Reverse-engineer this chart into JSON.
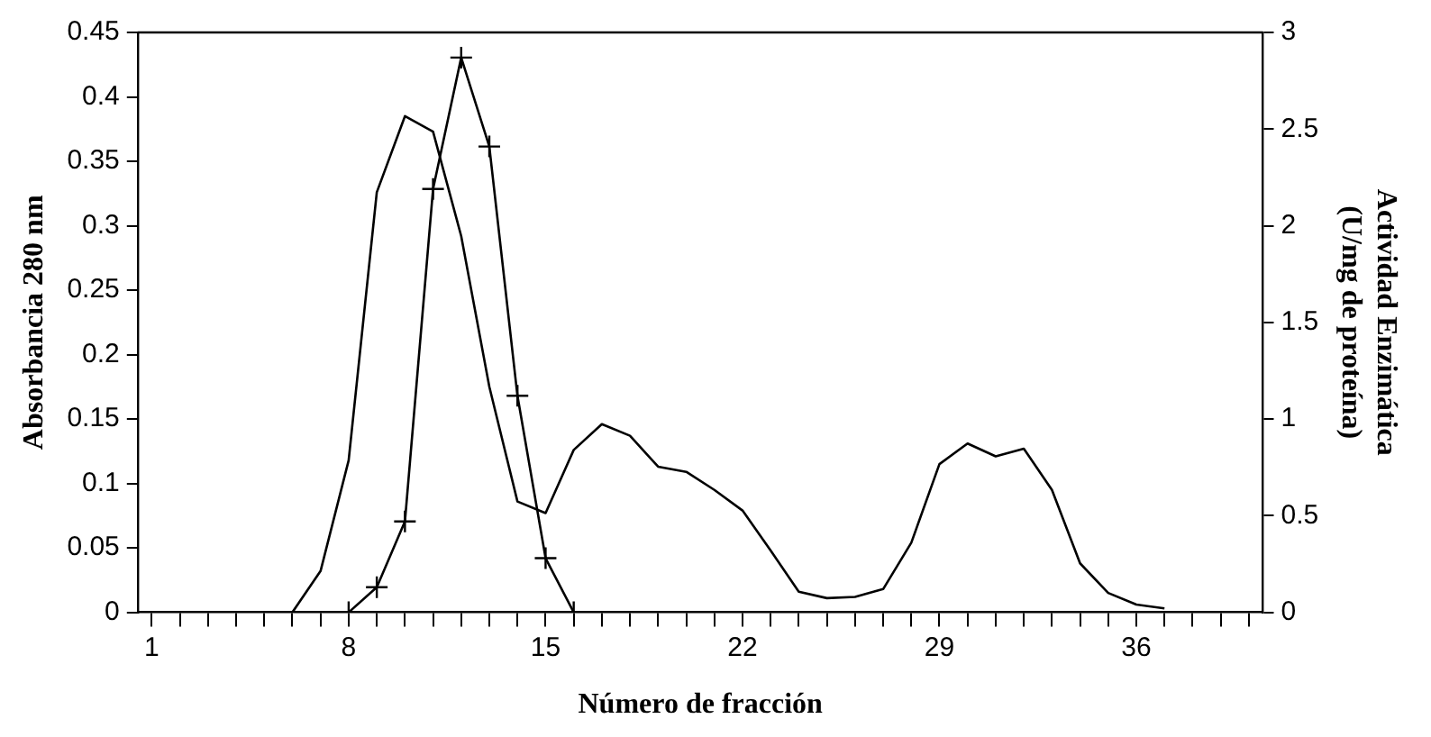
{
  "chart_data": {
    "type": "line",
    "xlabel": "Número de fracción",
    "ylabel": "Absorbancia 280 nm",
    "y2label": "Actividad Enzimática\n(U/mg de proteína)",
    "categories": [
      "1",
      null,
      null,
      null,
      null,
      null,
      null,
      "8",
      null,
      null,
      null,
      null,
      null,
      null,
      "15",
      null,
      null,
      null,
      null,
      null,
      null,
      "22",
      null,
      null,
      null,
      null,
      null,
      null,
      "29",
      null,
      null,
      null,
      null,
      null,
      null,
      "36",
      null,
      null,
      null,
      null
    ],
    "series": [
      {
        "color": "#000000",
        "marker": "none",
        "values": [
          null,
          null,
          null,
          null,
          null,
          0,
          0.032,
          0.118,
          0.326,
          0.385,
          0.373,
          0.292,
          0.175,
          0.086,
          0.077,
          0.126,
          0.146,
          0.137,
          0.113,
          0.109,
          0.095,
          0.079,
          0.048,
          0.016,
          0.011,
          0.012,
          0.018,
          0.054,
          0.115,
          0.131,
          0.121,
          0.127,
          0.095,
          0.038,
          0.015,
          0.006,
          0.003,
          null,
          null,
          null
        ]
      },
      {
        "color": "#000000",
        "marker": "cross",
        "axis": "y2",
        "values": [
          null,
          null,
          null,
          null,
          null,
          null,
          null,
          0,
          0.13,
          0.47,
          2.19,
          2.87,
          2.41,
          1.12,
          0.28,
          0,
          null,
          null,
          null,
          null,
          null,
          null,
          null,
          null,
          null,
          null,
          null,
          null,
          null,
          null,
          null,
          null,
          null,
          null,
          null,
          null,
          null,
          null,
          null,
          null
        ]
      }
    ],
    "ylim": [
      0,
      0.45
    ],
    "yticks": [
      0,
      0.05,
      0.1,
      0.15,
      0.2,
      0.25,
      0.3,
      0.35,
      0.4,
      0.45
    ],
    "y2lim": [
      0,
      3
    ],
    "y2ticks": [
      0,
      0.5,
      1,
      1.5,
      2,
      2.5,
      3
    ],
    "grid": false,
    "legend": false
  }
}
